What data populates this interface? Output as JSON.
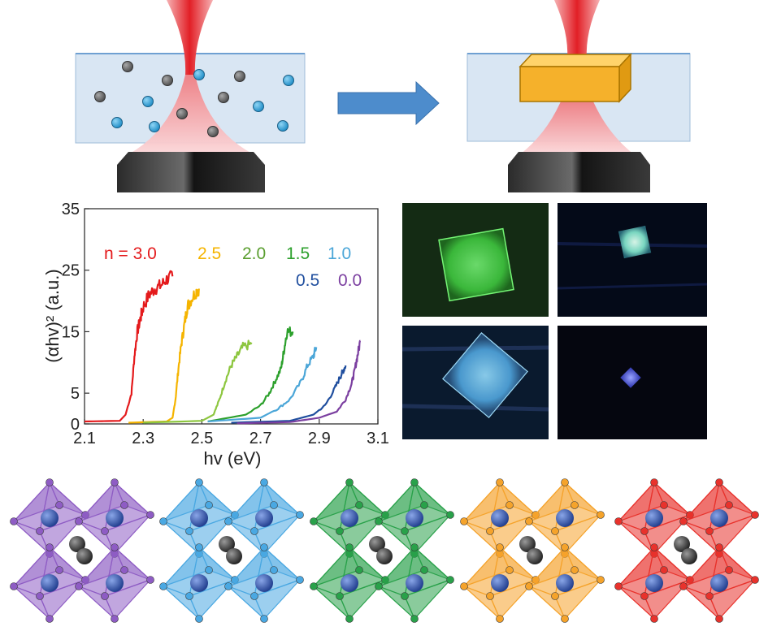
{
  "chart_data": {
    "type": "line",
    "xlabel": "hv (eV)",
    "ylabel": "(αhv)² (a.u.)",
    "xlim": [
      2.1,
      3.1
    ],
    "ylim": [
      0,
      35
    ],
    "xticks": [
      "2.1",
      "2.3",
      "2.5",
      "2.7",
      "2.9",
      "3.1"
    ],
    "yticks": [
      "0",
      "5",
      "15",
      "25",
      "35"
    ],
    "grid": false,
    "series": [
      {
        "name": "n = 3.0",
        "color": "#e41a1c",
        "x": [
          2.1,
          2.22,
          2.24,
          2.26,
          2.27,
          2.28,
          2.29,
          2.3,
          2.32,
          2.34,
          2.36,
          2.38,
          2.4
        ],
        "y": [
          0.4,
          0.5,
          1.5,
          5,
          11,
          15,
          17,
          19,
          21,
          22,
          22.5,
          23.5,
          24
        ]
      },
      {
        "name": "2.5",
        "color": "#f5b400",
        "x": [
          2.25,
          2.38,
          2.4,
          2.41,
          2.42,
          2.43,
          2.44,
          2.45,
          2.46,
          2.48,
          2.49
        ],
        "y": [
          0.2,
          0.4,
          1,
          4,
          9,
          13,
          16,
          19,
          20,
          21.5,
          22
        ]
      },
      {
        "name": "2.0",
        "color": "#8dc63f",
        "x": [
          2.3,
          2.5,
          2.54,
          2.56,
          2.58,
          2.6,
          2.62,
          2.64,
          2.67
        ],
        "y": [
          0.2,
          0.5,
          1.5,
          4,
          7,
          9.5,
          11,
          12.5,
          13
        ]
      },
      {
        "name": "1.5",
        "color": "#2ca02c",
        "x": [
          2.52,
          2.65,
          2.7,
          2.73,
          2.75,
          2.77,
          2.78,
          2.79,
          2.81
        ],
        "y": [
          0.4,
          1.5,
          3,
          5,
          7,
          9,
          12,
          15,
          15
        ]
      },
      {
        "name": "1.0",
        "color": "#4ba6d8",
        "x": [
          2.52,
          2.7,
          2.76,
          2.8,
          2.84,
          2.86,
          2.88,
          2.89
        ],
        "y": [
          0.4,
          1,
          2.5,
          4,
          7,
          9.5,
          11,
          12.5
        ]
      },
      {
        "name": "0.5",
        "color": "#1f4e9e",
        "x": [
          2.6,
          2.8,
          2.88,
          2.92,
          2.95,
          2.97,
          2.98,
          2.99
        ],
        "y": [
          0.2,
          0.5,
          1.5,
          3,
          5.5,
          7.5,
          8.5,
          9.5
        ]
      },
      {
        "name": "0.0",
        "color": "#7b3fa0",
        "x": [
          2.62,
          2.8,
          2.9,
          2.96,
          2.99,
          3.01,
          3.02,
          3.03,
          3.04
        ],
        "y": [
          0.1,
          0.3,
          1,
          2,
          4,
          6.5,
          8.5,
          11,
          13.5
        ]
      }
    ],
    "legend": {
      "row1": [
        "n = 3.0",
        "2.5",
        "2.0",
        "1.5",
        "1.0"
      ],
      "row2": [
        "0.5",
        "0.0"
      ]
    }
  },
  "diagram": {
    "schematic_before": {
      "particle_colors": [
        "#6f6f6f",
        "#39a7dc"
      ],
      "liquid_color": "#d9e6f3",
      "beam_color": "#e8343a"
    },
    "arrow_color": "#4d8ccc",
    "schematic_after": {
      "crystal_color": "#f5b12b"
    },
    "microscope_images": [
      {
        "name": "green-crystal",
        "tint": "#4cd14c",
        "shape": "square"
      },
      {
        "name": "cyan-crystal",
        "tint": "#7ee0c8",
        "shape": "square"
      },
      {
        "name": "blue-diamond",
        "tint": "#5fb1e8",
        "shape": "diamond"
      },
      {
        "name": "small-diamond",
        "tint": "#5560e0",
        "shape": "diamond"
      }
    ],
    "structures": [
      {
        "name": "purple",
        "color": "#8e5cc4"
      },
      {
        "name": "lightblue",
        "color": "#4aa8e2"
      },
      {
        "name": "green",
        "color": "#29a14a"
      },
      {
        "name": "orange",
        "color": "#f5a32b"
      },
      {
        "name": "red",
        "color": "#e8322c"
      }
    ]
  }
}
